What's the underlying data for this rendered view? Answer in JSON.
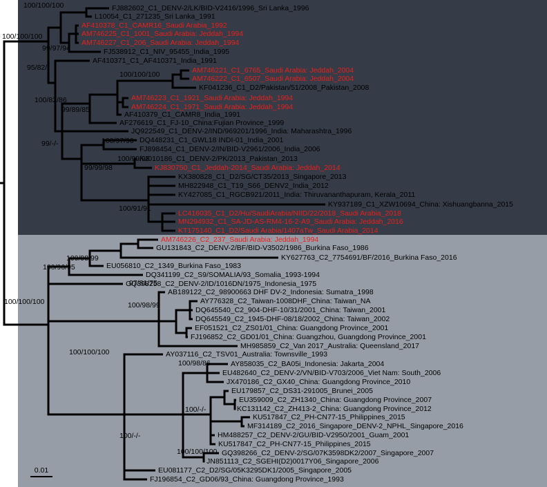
{
  "tips": [
    {
      "label": "FJ882602_C1_DENV-2/LK/BID-V2416/1996_Sri Lanka_1996",
      "color": "#000000"
    },
    {
      "label": "L10054_C1_271235_Sri Lanka_1991",
      "color": "#000000"
    },
    {
      "label": "AF410378_C1_CAMR16_Saudi Arabia_1992",
      "color": "#e8201c"
    },
    {
      "label": "AM746225_C1_1001_Saudi Arabia: Jeddah_1994",
      "color": "#e8201c"
    },
    {
      "label": "AM746227_C1_206_Saudi Arabia: Jeddah_1994",
      "color": "#e8201c"
    },
    {
      "label": "FJ538912_C1_NIV_95455_India_1995",
      "color": "#000000"
    },
    {
      "label": "AF410371_C1_AF410371_India_1991",
      "color": "#000000"
    },
    {
      "label": "AM746221_C1_6765_Saudi Arabia: Jeddah_2004",
      "color": "#e8201c"
    },
    {
      "label": "AM746222_C1_6507_Saudi Arabia: Jeddah_2004",
      "color": "#e8201c"
    },
    {
      "label": "KF041236_C1_D2/Pakistan/51/2008_Pakistan_2008",
      "color": "#000000"
    },
    {
      "label": "AM746223_C1_1921_Saudi Arabia: Jeddah_1994",
      "color": "#e8201c"
    },
    {
      "label": "AM746224_C1_1971_Saudi Arabia: Jeddah_1994",
      "color": "#e8201c"
    },
    {
      "label": "AF410379_C1_CAMR8_India_1991",
      "color": "#000000"
    },
    {
      "label": "AF276619_C1_FJ-10_China:Fujian Province_1999",
      "color": "#000000"
    },
    {
      "label": "JQ922549_C1_DENV-2/IND/969201/1996_India: Maharashtra_1996",
      "color": "#000000"
    },
    {
      "label": "DQ448231_C1_GWL18 INDI-01_India_2001",
      "color": "#000000"
    },
    {
      "label": "FJ898454_C1_DENV-2/IN/BID-V2961/2006_India_2006",
      "color": "#000000"
    },
    {
      "label": "KJ010186_C1_DENV-2/PK/2013_Pakistan_2013",
      "color": "#000000"
    },
    {
      "label": "KJ830750_C1_Jeddah-2014_Saudi Arabia: Jeddah_2014",
      "color": "#e8201c"
    },
    {
      "label": "KX380828_C1_D2/SG/CT35/2013_Singapore_2013",
      "color": "#000000"
    },
    {
      "label": "MH822948_C1_T19_S66_DENV2_India_2012",
      "color": "#000000"
    },
    {
      "label": "KY427085_C1_RGCB921/2011_India: Thiruvananthapuram, Kerala_2011",
      "color": "#000000"
    },
    {
      "label": "KY937189_C1_XZW10694_China: Xishuangbanna_2015",
      "color": "#000000"
    },
    {
      "label": "LC416035_C1_D2/Hu/SaudiArabia/NIID/22/2018_Saudi Arabia_2018",
      "color": "#e8201c"
    },
    {
      "label": "MN294932_C1_SA-JD-AS-RM4-16-2-A9_Saudi Arabia: Jeddah_2016",
      "color": "#e8201c"
    },
    {
      "label": "KT175140_C1_D2/Saudi Arabia/1407aTw_Saudi Arabia_2014",
      "color": "#e8201c"
    },
    {
      "label": "AM746226_C2_237_Saudi Arabia: Jeddah_1994",
      "color": "#e8201c"
    },
    {
      "label": "GU131843_C2_DENV-2/BF/BID-V3502/1986_Burkina Faso_1986",
      "color": "#000000"
    },
    {
      "label": "KY627763_C2_7754691/BF/2016_Burkina Faso_2016",
      "color": "#000000"
    },
    {
      "label": "EU056810_C2_1349_Burkina Faso_1983",
      "color": "#000000"
    },
    {
      "label": "DQ341199_C2_S9/SOMALIA/93_Somalia_1993-1994",
      "color": "#000000"
    },
    {
      "label": "GQ398258_C2_DENV-2/ID/1016DN/1975_Indonesia_1975",
      "color": "#000000"
    },
    {
      "label": "AB189122_C2_98900663 DHF DV-2_Indonesia: Sumatra_1998",
      "color": "#000000"
    },
    {
      "label": "AY776328_C2_Taiwan-1008DHF_China: Taiwan_NA",
      "color": "#000000"
    },
    {
      "label": "DQ645540_C2_904-DHF-10/31/2001_China: Taiwan_2001",
      "color": "#000000"
    },
    {
      "label": "DQ645549_C2_1945-DHF-08/18/2002_China: Taiwan_2002",
      "color": "#000000"
    },
    {
      "label": "EF051521_C2_ZS01/01_China: Guangdong Province_2001",
      "color": "#000000"
    },
    {
      "label": "FJ196852_C2_GD01/01_China: Guangzhou, Guangdong Province_2001",
      "color": "#000000"
    },
    {
      "label": "MH985859_C2_Van 2017_Australia: Queensland_2017",
      "color": "#000000"
    },
    {
      "label": "AY037116_C2_TSV01_Australia: Townsville_1993",
      "color": "#000000"
    },
    {
      "label": "AY858035_C2_BA05i_Indonesia: Jakarta_2004",
      "color": "#000000"
    },
    {
      "label": "EU482640_C2_DENV-2/VN/BID-V703/2006_Viet Nam: South_2006",
      "color": "#000000"
    },
    {
      "label": "JX470186_C2_GX40_China: Guangdong Province_2010",
      "color": "#000000"
    },
    {
      "label": "EU179857_C2_DS31-291005_Brunei_2005",
      "color": "#000000"
    },
    {
      "label": "EU359009_C2_ZH1340_China: Guangdong Province_2007",
      "color": "#000000"
    },
    {
      "label": "KC131142_C2_ZH413-2_China: Guangdong Province_2012",
      "color": "#000000"
    },
    {
      "label": "KU517847_C2_PH-CN77-15_Philippines_2015",
      "color": "#000000"
    },
    {
      "label": "MF314189_C2_2016_Singapore_DENV-2_NPHL_Singapore_2016",
      "color": "#000000"
    },
    {
      "label": "HM488257_C2_DENV-2/GU/BID-V2950/2001_Guam_2001",
      "color": "#000000"
    },
    {
      "label": "KU517847_C2_PH-CN77-15_Philippines_2015",
      "color": "#000000"
    },
    {
      "label": "GQ398266_C2_DENV-2/SG/07K3598DK2/2007_Singapore_2007",
      "color": "#000000"
    },
    {
      "label": "JN851113_C2_SGEHI(D2)0017Y06_Singapore_2006",
      "color": "#000000"
    },
    {
      "label": "EU081177_C2_D2/SG/05K3295DK1/2005_Singapore_2005",
      "color": "#000000"
    },
    {
      "label": "FJ196854_C2_GD06/93_China: Guangdong Province_1993",
      "color": "#000000"
    }
  ],
  "support_values": [
    "100/100/100",
    "100/100/100",
    "99/97/94",
    "95/82/-",
    "100/100/100",
    "100/82/86",
    "99/89/85",
    "99/-/-",
    "100/97/90",
    "100/99/98",
    "99/99/98",
    "100/91/91",
    "100/98/99",
    "100/96/95",
    "97/81/75",
    "100/100/100",
    "100/98/99",
    "100/100/100",
    "100/98/86",
    "100/-/-",
    "100/-/-",
    "100/100/100"
  ],
  "scale_bar": "0.01"
}
